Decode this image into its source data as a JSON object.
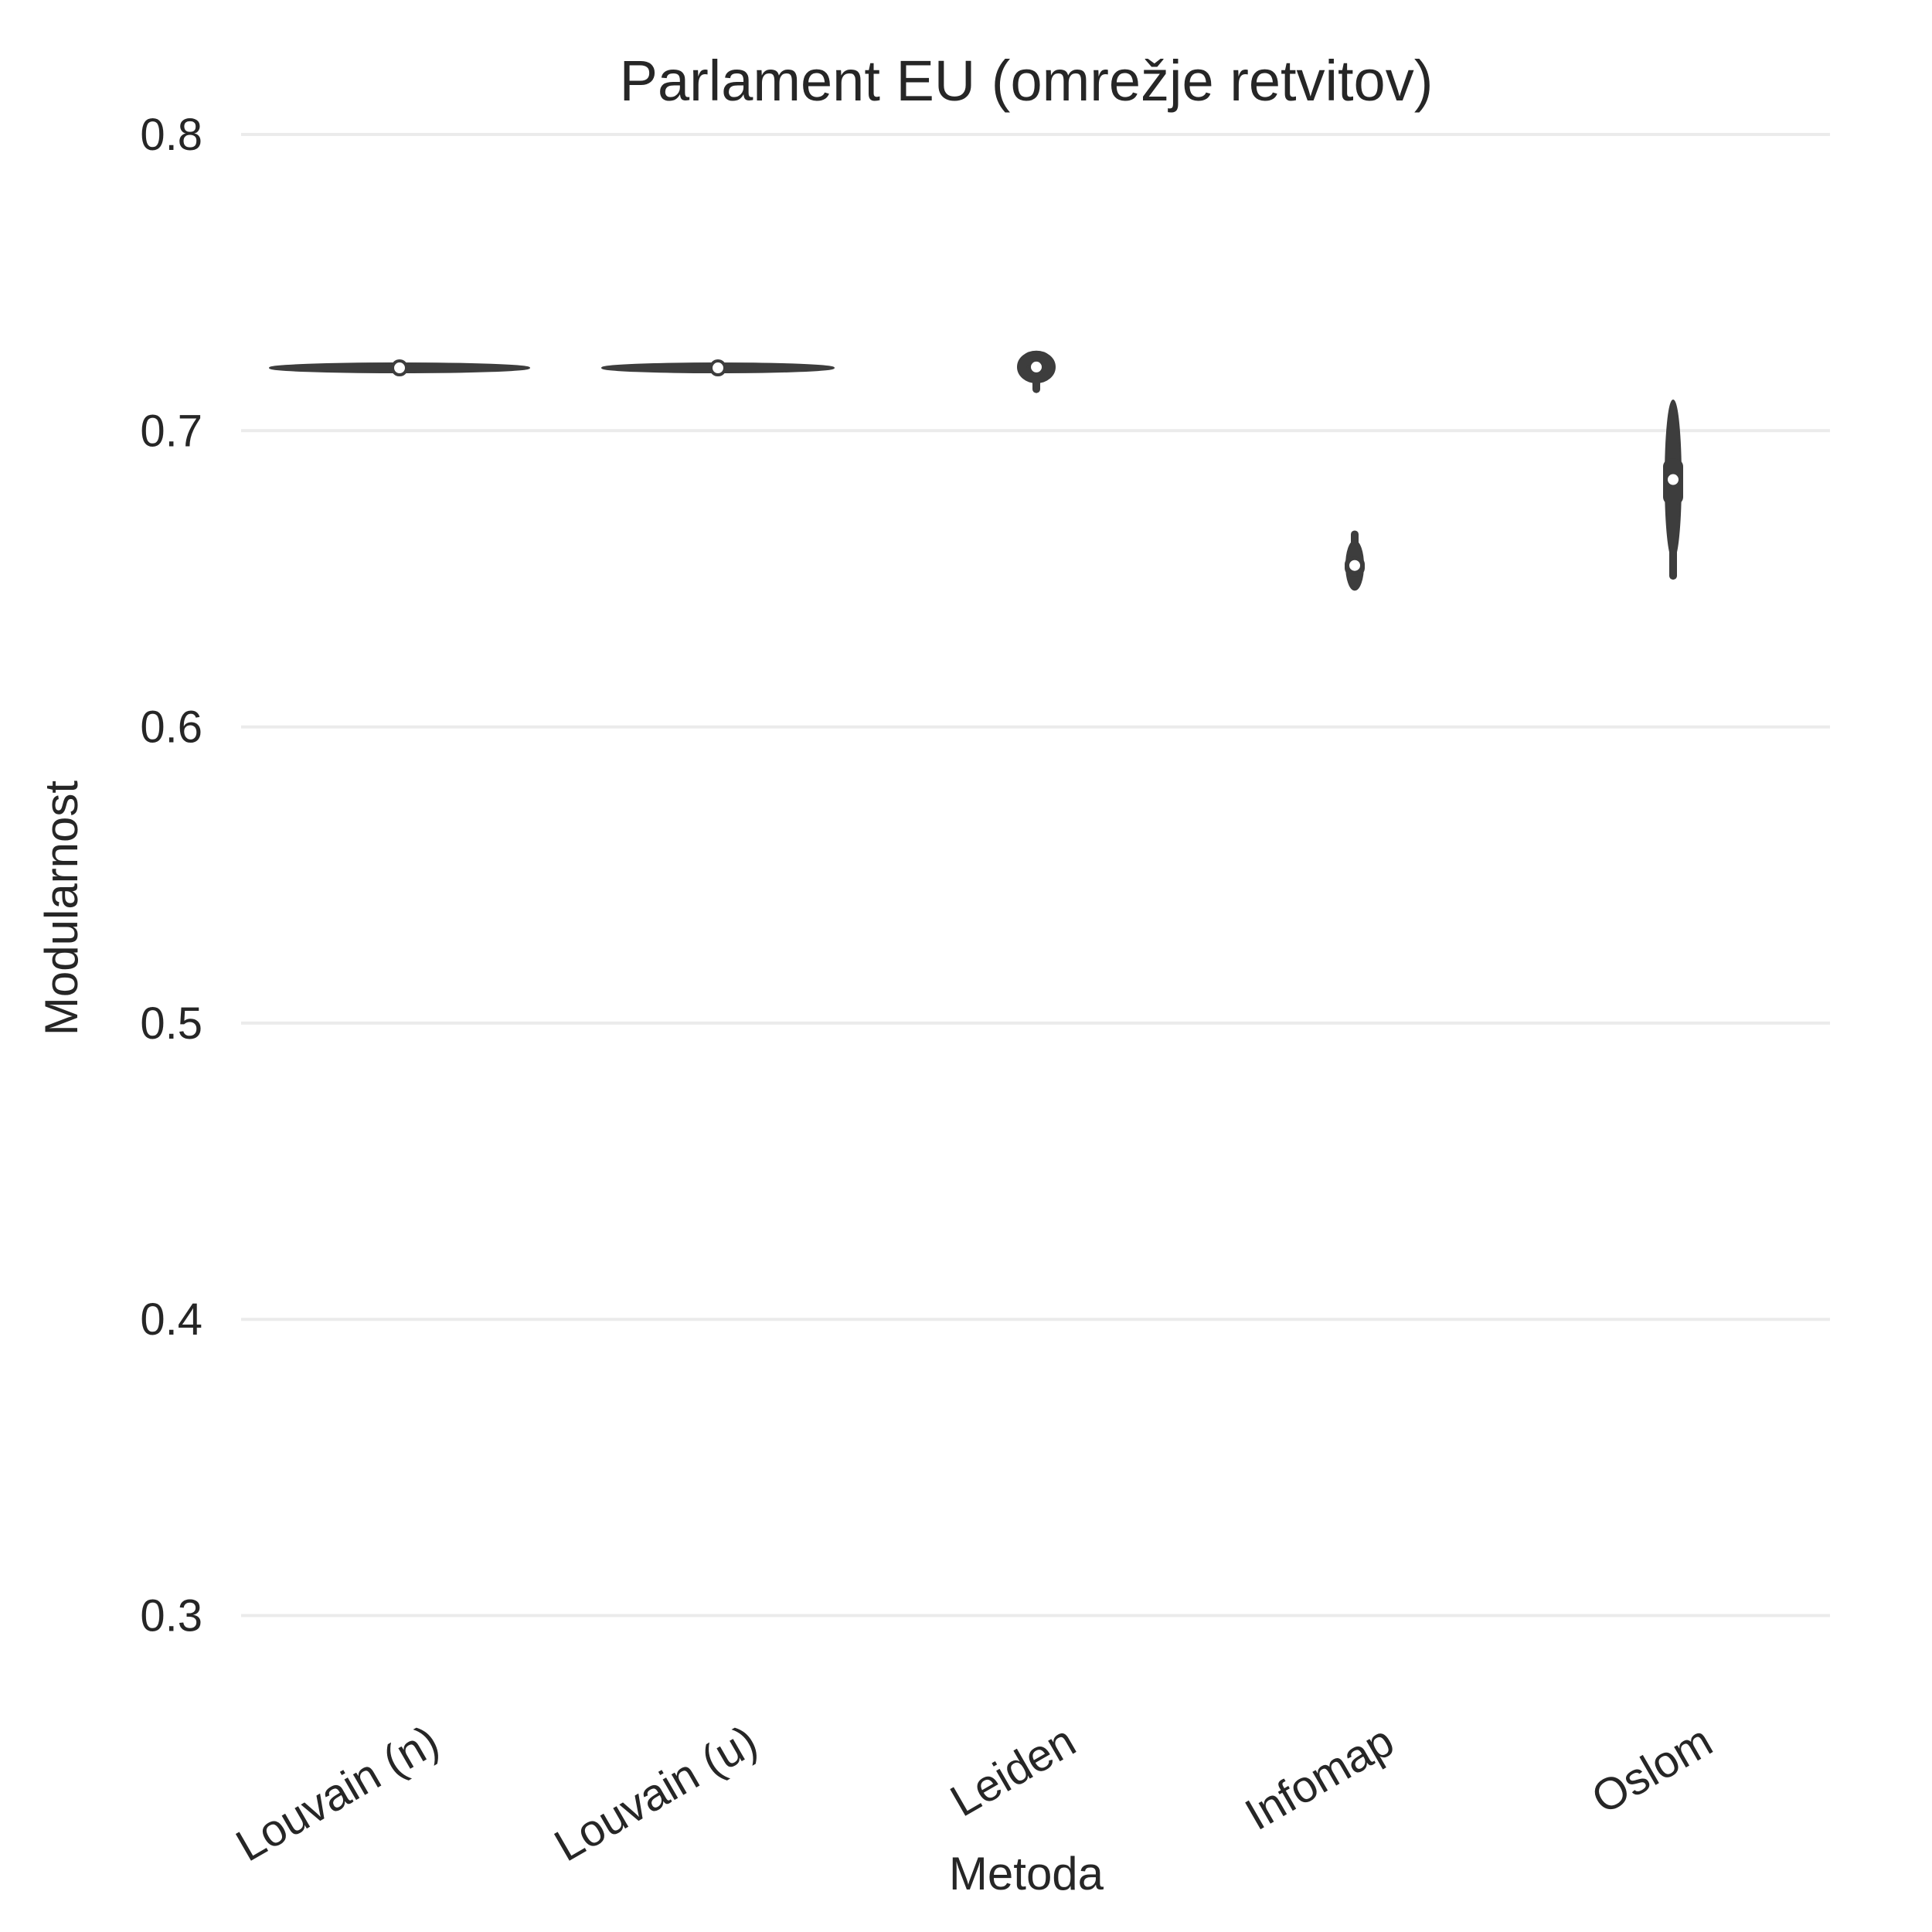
{
  "chart_data": {
    "type": "violin",
    "title": "Parlament EU  (omrežje retvitov)",
    "xlabel": "Metoda",
    "ylabel": "Modularnost",
    "ylim": [
      0.3,
      0.8
    ],
    "yticks": [
      0.3,
      0.4,
      0.5,
      0.6,
      0.7,
      0.8
    ],
    "ytick_labels": [
      "0.3",
      "0.4",
      "0.5",
      "0.6",
      "0.7",
      "0.8"
    ],
    "grid": true,
    "categories": [
      "Louvain (n)",
      "Louvain (u)",
      "Leiden",
      "Infomap",
      "Oslom"
    ],
    "series": [
      {
        "category": "Louvain (n)",
        "min": 0.7205,
        "q1": 0.7208,
        "median": 0.7212,
        "q3": 0.7215,
        "max": 0.7218
      },
      {
        "category": "Louvain (u)",
        "min": 0.7205,
        "q1": 0.7209,
        "median": 0.7212,
        "q3": 0.7215,
        "max": 0.7218
      },
      {
        "category": "Leiden",
        "min": 0.714,
        "q1": 0.7205,
        "median": 0.7215,
        "q3": 0.7225,
        "max": 0.7245
      },
      {
        "category": "Infomap",
        "min": 0.6485,
        "q1": 0.651,
        "median": 0.6545,
        "q3": 0.6575,
        "max": 0.665
      },
      {
        "category": "Oslom",
        "min": 0.651,
        "q1": 0.675,
        "median": 0.6835,
        "q3": 0.6905,
        "max": 0.7045
      }
    ],
    "colors": {
      "violin": "#3d3d3d",
      "box": "#3d3d3d",
      "median_marker": "#ffffff",
      "grid": "#ebebeb",
      "text": "#262626"
    }
  }
}
